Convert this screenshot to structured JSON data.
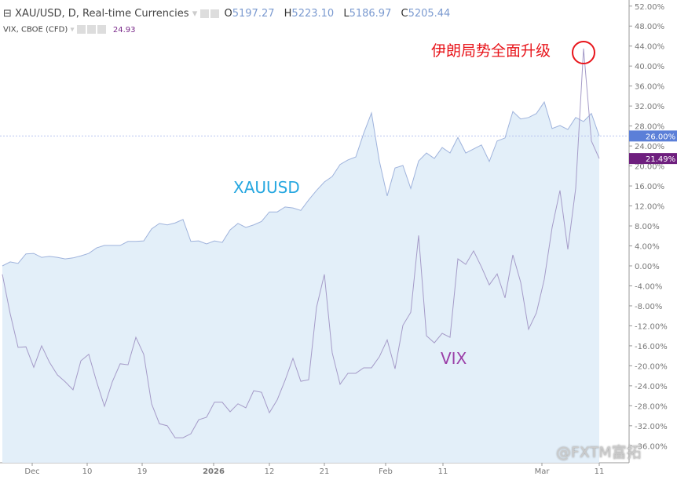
{
  "legend": {
    "main_symbol": "XAU/USD, D, Real-time Currencies",
    "o_label": "O",
    "o": "5197.27",
    "h_label": "H",
    "h": "5223.10",
    "l_label": "L",
    "l": "5186.97",
    "c_label": "C",
    "c": "5205.44",
    "overlay_symbol": "VIX, CBOE (CFD)",
    "overlay_value": "24.93"
  },
  "annotations": {
    "xau": "XAUUSD",
    "vix": "VIX",
    "event": "伊朗局势全面升级",
    "watermark": "@FXTM富拓"
  },
  "colors": {
    "xau_line": "#9fb3dc",
    "xau_fill": "#e3eff9",
    "vix_line": "#a59bc8",
    "xau_label": "#26a7e0",
    "vix_label": "#9b3fa8",
    "event": "#e8151b",
    "xau_badge": "#5b7fd8",
    "vix_badge": "#6e1f7e"
  },
  "chart_data": {
    "type": "line",
    "ylabel": "",
    "xlabel": "",
    "ylim": [
      -36,
      52
    ],
    "y_ticks": [
      "52.00%",
      "48.00%",
      "44.00%",
      "40.00%",
      "36.00%",
      "32.00%",
      "28.00%",
      "24.00%",
      "20.00%",
      "16.00%",
      "12.00%",
      "8.00%",
      "4.00%",
      "0.00%",
      "-4.00%",
      "-8.00%",
      "-12.00%",
      "-16.00%",
      "-20.00%",
      "-24.00%",
      "-28.00%",
      "-32.00%",
      "-36.00%"
    ],
    "x_ticks": [
      "Dec",
      "10",
      "19",
      "2026",
      "12",
      "21",
      "Feb",
      "11",
      "Mar",
      "11"
    ],
    "last_labels": {
      "xau": "26.00%",
      "vix": "21.49%"
    },
    "series": [
      {
        "name": "XAUUSD",
        "area": true,
        "values": [
          0,
          0.8,
          0.5,
          2.4,
          2.5,
          1.7,
          1.9,
          1.7,
          1.4,
          1.6,
          2.0,
          2.5,
          3.6,
          4.1,
          4.1,
          4.1,
          4.9,
          4.9,
          5.0,
          7.4,
          8.5,
          8.2,
          8.6,
          9.3,
          4.9,
          5.0,
          4.4,
          5.0,
          4.7,
          7.2,
          8.5,
          7.7,
          8.2,
          8.9,
          10.8,
          10.8,
          11.8,
          11.6,
          11.1,
          13.2,
          15.1,
          16.8,
          17.9,
          20.3,
          21.2,
          21.8,
          26.5,
          30.6,
          21.0,
          14.0,
          19.6,
          20.1,
          15.5,
          21.0,
          22.6,
          21.5,
          23.7,
          22.6,
          25.7,
          22.6,
          23.4,
          24.2,
          20.9,
          25.0,
          25.6,
          30.9,
          29.4,
          29.7,
          30.5,
          32.8,
          27.5,
          28.1,
          27.3,
          29.7,
          28.9,
          30.5,
          26.0
        ]
      },
      {
        "name": "VIX",
        "values": [
          -1.7,
          -9.6,
          -16.3,
          -16.2,
          -20.3,
          -16.0,
          -19.3,
          -21.8,
          -23.2,
          -24.8,
          -19.0,
          -17.7,
          -23.2,
          -28.1,
          -23.2,
          -19.6,
          -19.8,
          -14.3,
          -17.7,
          -27.6,
          -31.6,
          -32.0,
          -34.4,
          -34.4,
          -33.6,
          -30.8,
          -30.3,
          -27.3,
          -27.3,
          -29.2,
          -27.6,
          -28.4,
          -25.0,
          -25.3,
          -29.4,
          -26.8,
          -22.9,
          -18.5,
          -23.1,
          -22.8,
          -8.3,
          -1.7,
          -17.4,
          -23.7,
          -21.5,
          -21.5,
          -20.4,
          -20.4,
          -18.2,
          -14.8,
          -20.6,
          -11.9,
          -9.3,
          6.1,
          -14.0,
          -15.4,
          -13.5,
          -14.3,
          1.4,
          0.3,
          3.0,
          -0.2,
          -3.8,
          -1.6,
          -6.4,
          2.2,
          -3.3,
          -12.7,
          -9.4,
          -2.7,
          7.7,
          15.1,
          3.3,
          15.5,
          43.5,
          25.0,
          21.49
        ]
      }
    ]
  }
}
